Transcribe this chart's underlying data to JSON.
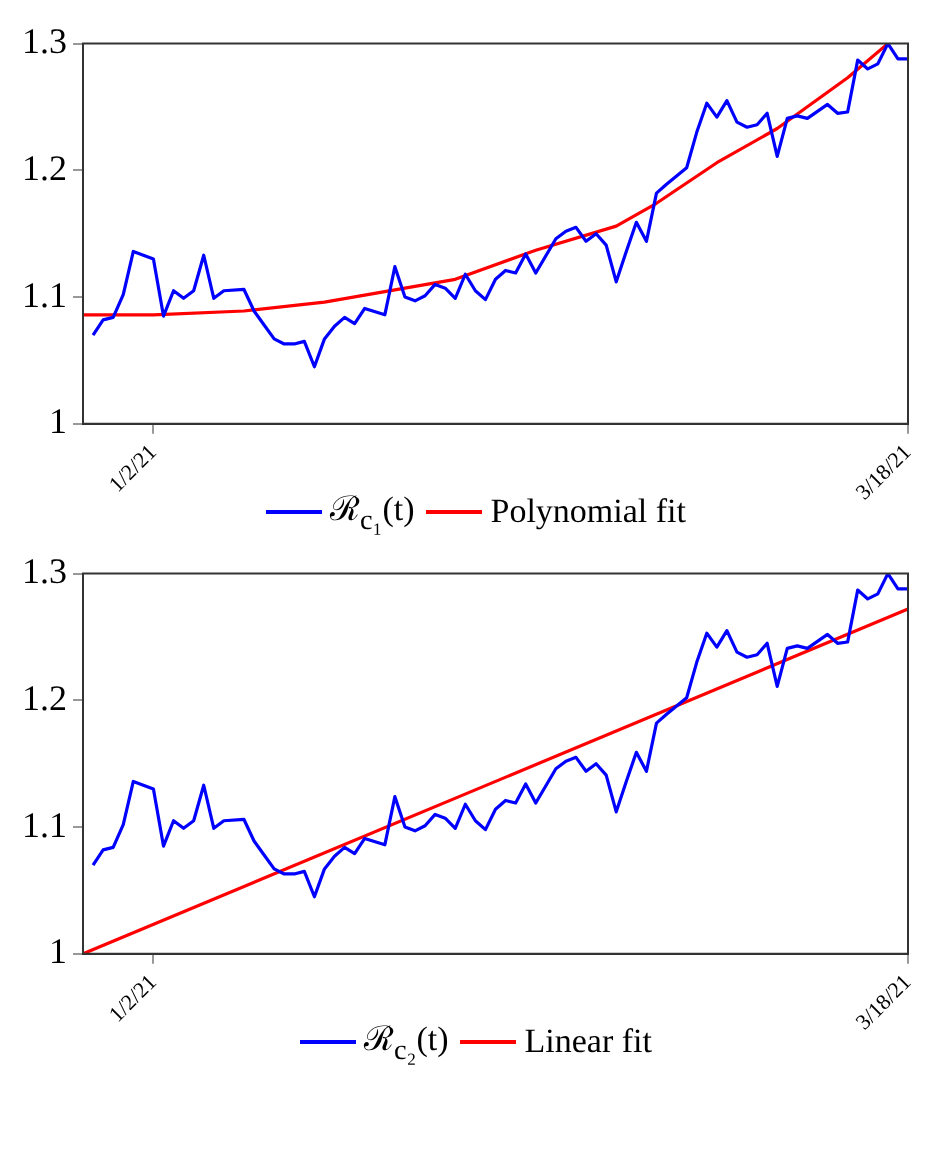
{
  "chart_data": [
    {
      "type": "line",
      "xlim": [
        "2020-12-26",
        "2021-03-18"
      ],
      "xticks": [
        {
          "value": "2021-01-02",
          "label": "1/2/21"
        },
        {
          "value": "2021-03-18",
          "label": "3/18/21"
        }
      ],
      "ylim": [
        1,
        1.3
      ],
      "yticks": [
        1,
        1.1,
        1.2,
        1.3
      ],
      "grid": false,
      "legend": "bottom",
      "series": [
        {
          "name": "ℛ$_{c₁}$(t)",
          "color": "#0000ff",
          "x": [
            "2020-12-27",
            "2020-12-28",
            "2020-12-29",
            "2020-12-30",
            "2020-12-31",
            "2021-01-01",
            "2021-01-02",
            "2021-01-03",
            "2021-01-04",
            "2021-01-05",
            "2021-01-06",
            "2021-01-07",
            "2021-01-08",
            "2021-01-09",
            "2021-01-11",
            "2021-01-12",
            "2021-01-13",
            "2021-01-14",
            "2021-01-15",
            "2021-01-16",
            "2021-01-17",
            "2021-01-18",
            "2021-01-19",
            "2021-01-20",
            "2021-01-21",
            "2021-01-22",
            "2021-01-23",
            "2021-01-25",
            "2021-01-26",
            "2021-01-27",
            "2021-01-28",
            "2021-01-29",
            "2021-01-30",
            "2021-01-31",
            "2021-02-01",
            "2021-02-02",
            "2021-02-03",
            "2021-02-04",
            "2021-02-05",
            "2021-02-06",
            "2021-02-07",
            "2021-02-08",
            "2021-02-09",
            "2021-02-11",
            "2021-02-12",
            "2021-02-13",
            "2021-02-14",
            "2021-02-15",
            "2021-02-16",
            "2021-02-17",
            "2021-02-18",
            "2021-02-19",
            "2021-02-20",
            "2021-02-21",
            "2021-02-22",
            "2021-02-24",
            "2021-02-25",
            "2021-02-26",
            "2021-02-27",
            "2021-02-28",
            "2021-03-01",
            "2021-03-02",
            "2021-03-03",
            "2021-03-04",
            "2021-03-05",
            "2021-03-06",
            "2021-03-07",
            "2021-03-08",
            "2021-03-10",
            "2021-03-11",
            "2021-03-12",
            "2021-03-13",
            "2021-03-14",
            "2021-03-15",
            "2021-03-16",
            "2021-03-17",
            "2021-03-18"
          ],
          "values": [
            1.07,
            1.082,
            1.084,
            1.102,
            1.136,
            1.133,
            1.13,
            1.085,
            1.105,
            1.099,
            1.105,
            1.133,
            1.099,
            1.105,
            1.106,
            1.089,
            1.078,
            1.067,
            1.063,
            1.063,
            1.065,
            1.045,
            1.067,
            1.077,
            1.084,
            1.079,
            1.091,
            1.086,
            1.124,
            1.1,
            1.097,
            1.101,
            1.11,
            1.107,
            1.099,
            1.118,
            1.105,
            1.098,
            1.114,
            1.121,
            1.119,
            1.134,
            1.119,
            1.146,
            1.152,
            1.155,
            1.144,
            1.15,
            1.141,
            1.112,
            1.136,
            1.159,
            1.144,
            1.182,
            1.189,
            1.202,
            1.23,
            1.253,
            1.242,
            1.255,
            1.238,
            1.234,
            1.236,
            1.245,
            1.211,
            1.241,
            1.243,
            1.241,
            1.252,
            1.245,
            1.246,
            1.287,
            1.28,
            1.284,
            1.3,
            1.288,
            1.288
          ]
        },
        {
          "name": "Polynomial fit",
          "color": "#ff0000",
          "x": [
            "2020-12-26",
            "2021-01-02",
            "2021-01-11",
            "2021-01-19",
            "2021-02-01",
            "2021-02-09",
            "2021-02-17",
            "2021-02-21",
            "2021-02-27",
            "2021-03-05",
            "2021-03-12",
            "2021-03-16"
          ],
          "values": [
            1.086,
            1.086,
            1.089,
            1.096,
            1.114,
            1.137,
            1.156,
            1.174,
            1.206,
            1.233,
            1.273,
            1.3
          ]
        }
      ]
    },
    {
      "type": "line",
      "xlim": [
        "2020-12-26",
        "2021-03-18"
      ],
      "xticks": [
        {
          "value": "2021-01-02",
          "label": "1/2/21"
        },
        {
          "value": "2021-03-18",
          "label": "3/18/21"
        }
      ],
      "ylim": [
        1,
        1.3
      ],
      "yticks": [
        1,
        1.1,
        1.2,
        1.3
      ],
      "grid": false,
      "legend": "bottom",
      "series": [
        {
          "name": "ℛ$_{c₂}$(t)",
          "color": "#0000ff",
          "x": [
            "2020-12-27",
            "2020-12-28",
            "2020-12-29",
            "2020-12-30",
            "2020-12-31",
            "2021-01-01",
            "2021-01-02",
            "2021-01-03",
            "2021-01-04",
            "2021-01-05",
            "2021-01-06",
            "2021-01-07",
            "2021-01-08",
            "2021-01-09",
            "2021-01-11",
            "2021-01-12",
            "2021-01-13",
            "2021-01-14",
            "2021-01-15",
            "2021-01-16",
            "2021-01-17",
            "2021-01-18",
            "2021-01-19",
            "2021-01-20",
            "2021-01-21",
            "2021-01-22",
            "2021-01-23",
            "2021-01-25",
            "2021-01-26",
            "2021-01-27",
            "2021-01-28",
            "2021-01-29",
            "2021-01-30",
            "2021-01-31",
            "2021-02-01",
            "2021-02-02",
            "2021-02-03",
            "2021-02-04",
            "2021-02-05",
            "2021-02-06",
            "2021-02-07",
            "2021-02-08",
            "2021-02-09",
            "2021-02-11",
            "2021-02-12",
            "2021-02-13",
            "2021-02-14",
            "2021-02-15",
            "2021-02-16",
            "2021-02-17",
            "2021-02-18",
            "2021-02-19",
            "2021-02-20",
            "2021-02-21",
            "2021-02-22",
            "2021-02-24",
            "2021-02-25",
            "2021-02-26",
            "2021-02-27",
            "2021-02-28",
            "2021-03-01",
            "2021-03-02",
            "2021-03-03",
            "2021-03-04",
            "2021-03-05",
            "2021-03-06",
            "2021-03-07",
            "2021-03-08",
            "2021-03-10",
            "2021-03-11",
            "2021-03-12",
            "2021-03-13",
            "2021-03-14",
            "2021-03-15",
            "2021-03-16",
            "2021-03-17",
            "2021-03-18"
          ],
          "values": [
            1.07,
            1.082,
            1.084,
            1.102,
            1.136,
            1.133,
            1.13,
            1.085,
            1.105,
            1.099,
            1.105,
            1.133,
            1.099,
            1.105,
            1.106,
            1.089,
            1.078,
            1.067,
            1.063,
            1.063,
            1.065,
            1.045,
            1.067,
            1.077,
            1.084,
            1.079,
            1.091,
            1.086,
            1.124,
            1.1,
            1.097,
            1.101,
            1.11,
            1.107,
            1.099,
            1.118,
            1.105,
            1.098,
            1.114,
            1.121,
            1.119,
            1.134,
            1.119,
            1.146,
            1.152,
            1.155,
            1.144,
            1.15,
            1.141,
            1.112,
            1.136,
            1.159,
            1.144,
            1.182,
            1.189,
            1.202,
            1.23,
            1.253,
            1.242,
            1.255,
            1.238,
            1.234,
            1.236,
            1.245,
            1.211,
            1.241,
            1.243,
            1.241,
            1.252,
            1.245,
            1.246,
            1.287,
            1.28,
            1.284,
            1.3,
            1.288,
            1.288
          ]
        },
        {
          "name": "Linear fit",
          "color": "#ff0000",
          "x": [
            "2020-12-26",
            "2021-03-18"
          ],
          "values": [
            1.0,
            1.272
          ]
        }
      ]
    }
  ]
}
